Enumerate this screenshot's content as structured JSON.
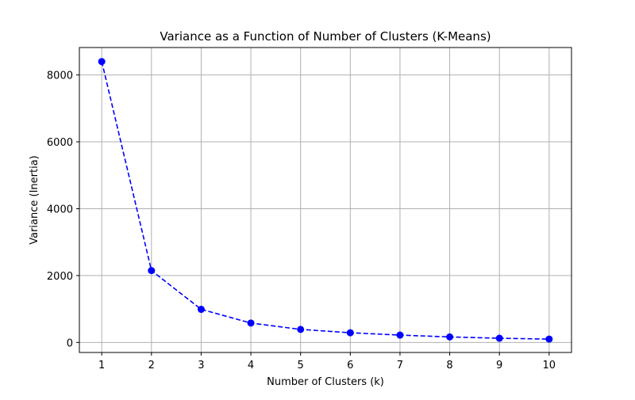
{
  "chart_data": {
    "type": "line",
    "title": "Variance as a Function of Number of Clusters (K-Means)",
    "xlabel": "Number of Clusters (k)",
    "ylabel": "Variance (Inertia)",
    "x": [
      1,
      2,
      3,
      4,
      5,
      6,
      7,
      8,
      9,
      10
    ],
    "series": [
      {
        "values": [
          8400,
          2150,
          990,
          580,
          390,
          290,
          220,
          165,
          125,
          100
        ],
        "color": "#0000ff",
        "line_style": "dashed",
        "marker": "circle"
      }
    ],
    "xticks": [
      "1",
      "2",
      "3",
      "4",
      "5",
      "6",
      "7",
      "8",
      "9",
      "10"
    ],
    "yticks": [
      "0",
      "2000",
      "4000",
      "6000",
      "8000"
    ],
    "xlim": [
      0.55,
      10.45
    ],
    "ylim": [
      -300,
      8820
    ],
    "grid": true,
    "legend": false
  }
}
